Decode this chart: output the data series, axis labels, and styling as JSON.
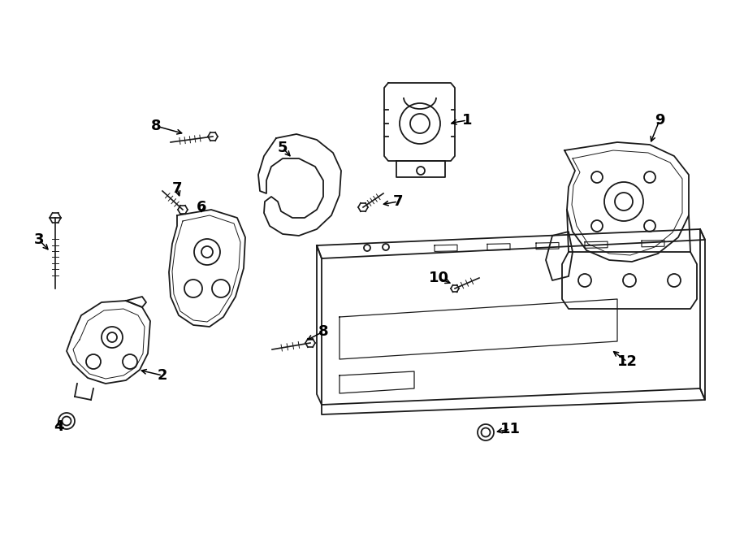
{
  "bg_color": "#ffffff",
  "line_color": "#1a1a1a",
  "figsize": [
    9.0,
    6.62
  ],
  "dpi": 100
}
